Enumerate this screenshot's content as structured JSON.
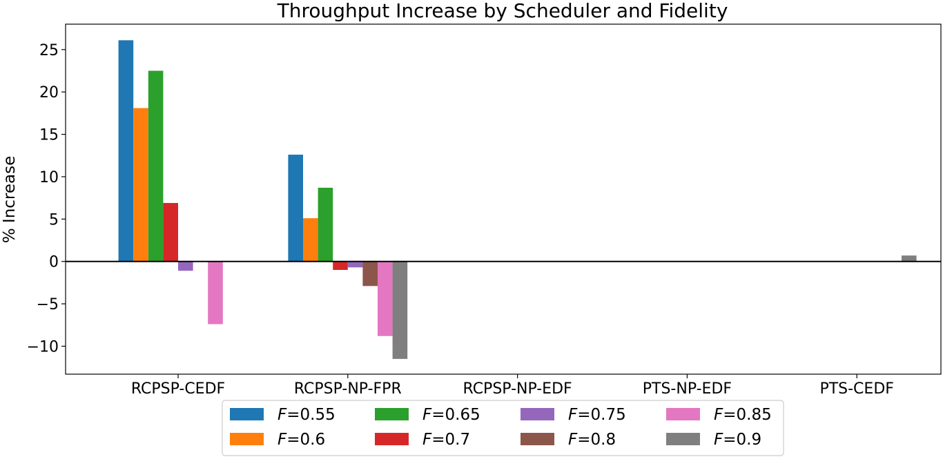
{
  "chart_data": {
    "type": "bar",
    "title": "Throughput Increase by Scheduler and Fidelity",
    "xlabel": "",
    "ylabel": "% Increase",
    "categories": [
      "RCPSP-CEDF",
      "RCPSP-NP-FPR",
      "RCPSP-NP-EDF",
      "PTS-NP-EDF",
      "PTS-CEDF"
    ],
    "ylim": [
      -13.3,
      28
    ],
    "yticks": [
      -10,
      -5,
      0,
      5,
      10,
      15,
      20,
      25
    ],
    "ytick_labels": [
      "−10",
      "−5",
      "0",
      "5",
      "10",
      "15",
      "20",
      "25"
    ],
    "grid": false,
    "legend_position": "bottom-center",
    "series": [
      {
        "name": "F=0.55",
        "color": "#1f77b4",
        "values": [
          26.1,
          12.6,
          0,
          0,
          0
        ]
      },
      {
        "name": "F=0.6",
        "color": "#ff7f0e",
        "values": [
          18.1,
          5.1,
          0,
          0,
          0
        ]
      },
      {
        "name": "F=0.65",
        "color": "#2ca02c",
        "values": [
          22.5,
          8.7,
          0,
          0,
          0
        ]
      },
      {
        "name": "F=0.7",
        "color": "#d62728",
        "values": [
          6.9,
          -1.0,
          0,
          0,
          0
        ]
      },
      {
        "name": "F=0.75",
        "color": "#9467bd",
        "values": [
          -1.1,
          -0.7,
          0,
          0,
          0
        ]
      },
      {
        "name": "F=0.8",
        "color": "#8c564b",
        "values": [
          0,
          -2.9,
          0,
          0,
          0
        ]
      },
      {
        "name": "F=0.85",
        "color": "#e377c2",
        "values": [
          -7.4,
          -8.8,
          0,
          0,
          0
        ]
      },
      {
        "name": "F=0.9",
        "color": "#7f7f7f",
        "values": [
          0,
          -11.5,
          0,
          0,
          0.7
        ]
      }
    ]
  }
}
